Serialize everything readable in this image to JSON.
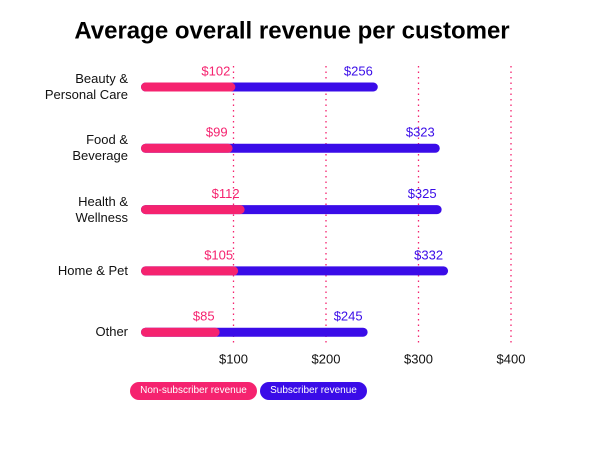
{
  "chart_data": {
    "type": "bar",
    "orientation": "horizontal",
    "overlay": true,
    "title": "Average overall revenue per customer",
    "categories": [
      "Beauty & Personal Care",
      "Food & Beverage",
      "Health & Wellness",
      "Home & Pet",
      "Other"
    ],
    "series": [
      {
        "name": "Subscriber revenue",
        "color": "#3a0ce8",
        "values": [
          256,
          323,
          325,
          332,
          245
        ],
        "value_labels": [
          "$256",
          "$323",
          "$325",
          "$332",
          "$245"
        ]
      },
      {
        "name": "Non-subscriber revenue",
        "color": "#f5236f",
        "values": [
          102,
          99,
          112,
          105,
          85
        ],
        "value_labels": [
          "$102",
          "$99",
          "$112",
          "$105",
          "$85"
        ]
      }
    ],
    "xlim": [
      0,
      400
    ],
    "xticks": [
      {
        "value": 100,
        "label": "$100"
      },
      {
        "value": 200,
        "label": "$200"
      },
      {
        "value": 300,
        "label": "$300"
      },
      {
        "value": 400,
        "label": "$400"
      }
    ],
    "grid": true,
    "grid_color": "#f5236f",
    "legend": "bottom"
  }
}
